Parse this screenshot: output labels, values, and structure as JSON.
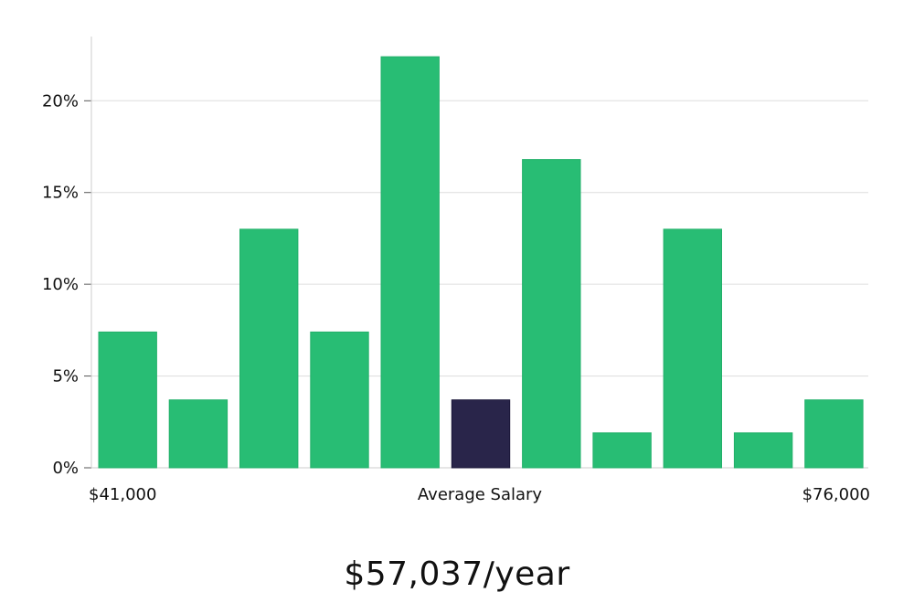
{
  "chart_data": {
    "type": "bar",
    "title": "",
    "xlabel": "Average Salary",
    "ylabel": "",
    "x_min_label": "$41,000",
    "x_max_label": "$76,000",
    "ylim": [
      0,
      23.5
    ],
    "yticks": [
      0,
      5,
      10,
      15,
      20
    ],
    "ytick_labels": [
      "0%",
      "5%",
      "10%",
      "15%",
      "20%"
    ],
    "grid": true,
    "values": [
      7.4,
      3.7,
      13.0,
      7.4,
      22.4,
      3.7,
      16.8,
      1.9,
      13.0,
      1.9,
      3.7
    ],
    "highlight_index": 5,
    "colors": {
      "bar": "#28bd74",
      "highlight": "#29254a",
      "grid": "#dddddd",
      "axis": "#cccccc"
    }
  },
  "summary": {
    "salary_text": "$57,037/year"
  }
}
